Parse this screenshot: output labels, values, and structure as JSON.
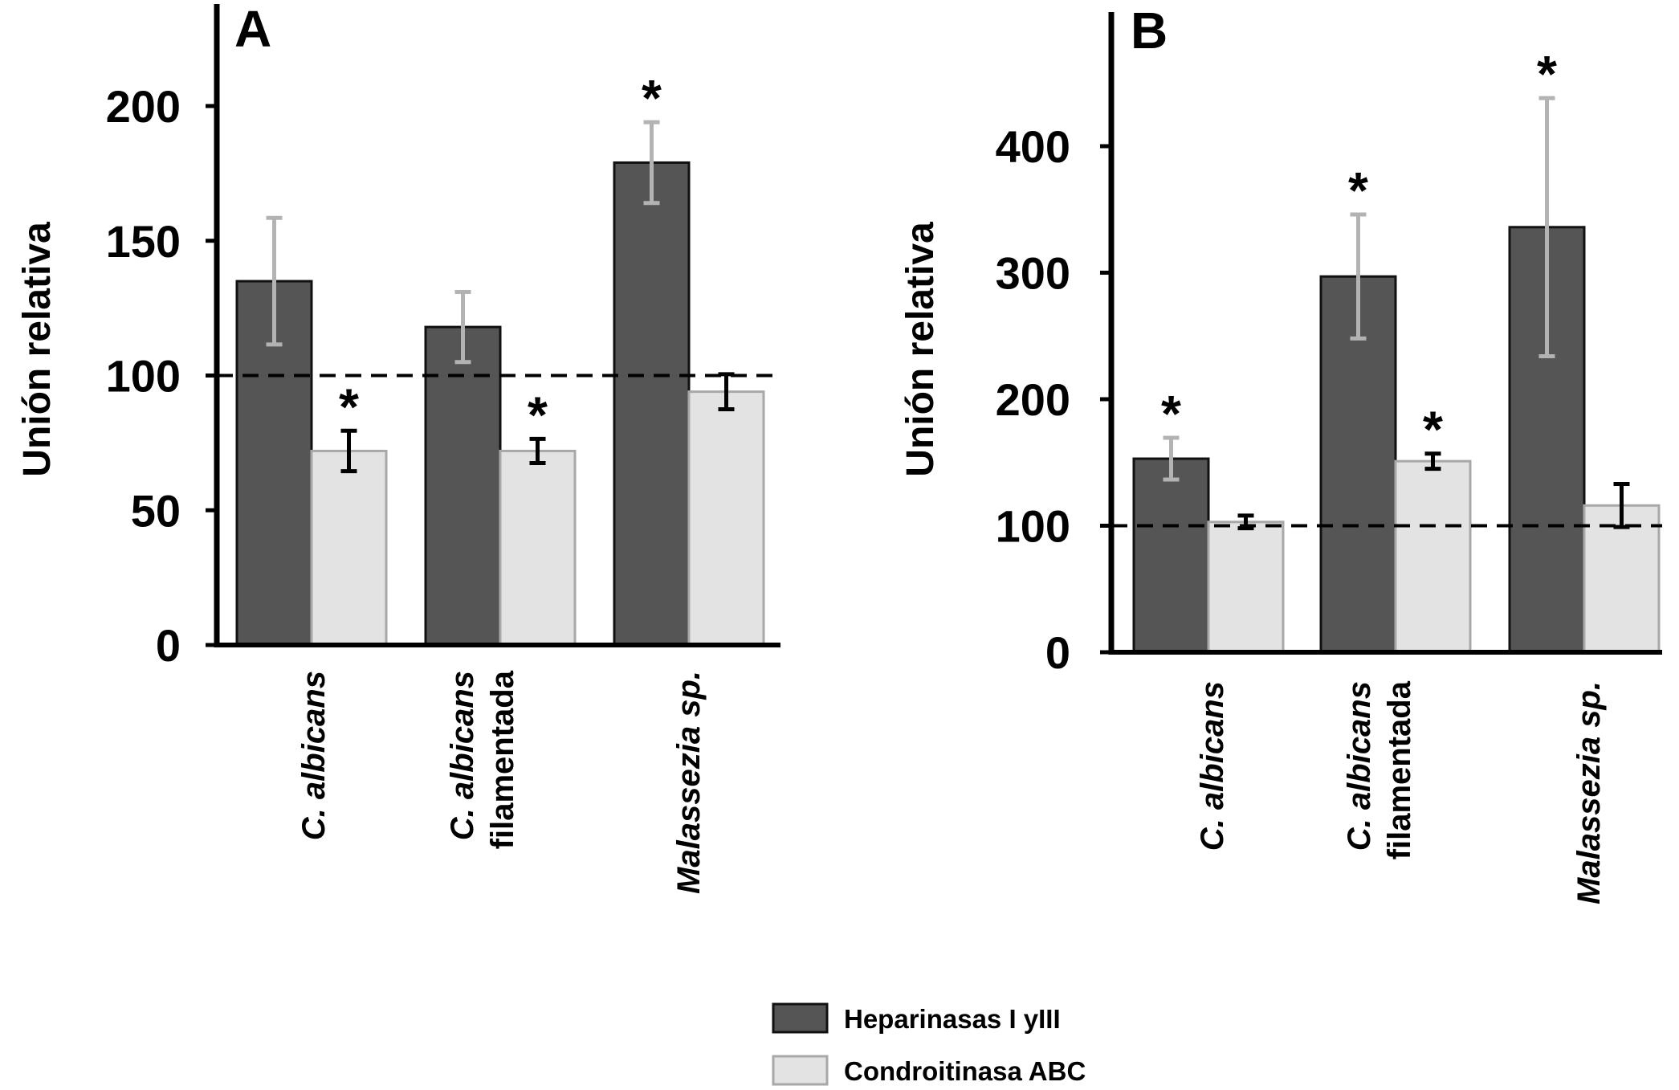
{
  "legend": {
    "items": [
      {
        "label": "Heparinasas I yIII",
        "color": "#555555",
        "stroke": "#111111"
      },
      {
        "label": "Condroitinasa ABC",
        "color": "#e3e3e3",
        "stroke": "#a8a8a8"
      }
    ]
  },
  "chart_data": [
    {
      "type": "bar",
      "panel": "A",
      "ylabel": "Unión relativa",
      "ylim": [
        0,
        200
      ],
      "yticks": [
        "0",
        "50",
        "100",
        "150",
        "200"
      ],
      "reference_line": 100,
      "categories": [
        {
          "lines": [
            {
              "text": "C. albicans",
              "italic": true
            }
          ]
        },
        {
          "lines": [
            {
              "text": "C. albicans",
              "italic": true
            },
            {
              "text": "filamentada",
              "italic": false
            }
          ]
        },
        {
          "lines": [
            {
              "text": "Malassezia sp.",
              "italic": true
            }
          ]
        }
      ],
      "series": [
        {
          "name": "Heparinasas I yIII",
          "values": [
            135,
            118,
            179
          ],
          "errors": [
            23.5,
            13,
            15
          ],
          "significant": [
            false,
            false,
            true
          ]
        },
        {
          "name": "Condroitinasa ABC",
          "values": [
            72,
            72,
            94
          ],
          "errors": [
            7.5,
            4.5,
            6.5
          ],
          "significant": [
            true,
            true,
            false
          ]
        }
      ],
      "significance_marker": "*"
    },
    {
      "type": "bar",
      "panel": "B",
      "ylabel": "Unión relativa",
      "ylim": [
        0,
        400
      ],
      "yticks": [
        "0",
        "100",
        "200",
        "300",
        "400"
      ],
      "reference_line": 100,
      "categories": [
        {
          "lines": [
            {
              "text": "C. albicans",
              "italic": true
            }
          ]
        },
        {
          "lines": [
            {
              "text": "C. albicans",
              "italic": true
            },
            {
              "text": "filamentada",
              "italic": false
            }
          ]
        },
        {
          "lines": [
            {
              "text": "Malassezia sp.",
              "italic": true
            }
          ]
        }
      ],
      "series": [
        {
          "name": "Heparinasas I yIII",
          "values": [
            153,
            297,
            336
          ],
          "errors": [
            16.5,
            49,
            102
          ],
          "significant": [
            true,
            true,
            true
          ]
        },
        {
          "name": "Condroitinasa ABC",
          "values": [
            103,
            151,
            116
          ],
          "errors": [
            5,
            6,
            17
          ],
          "significant": [
            false,
            true,
            false
          ]
        }
      ],
      "significance_marker": "*"
    }
  ]
}
